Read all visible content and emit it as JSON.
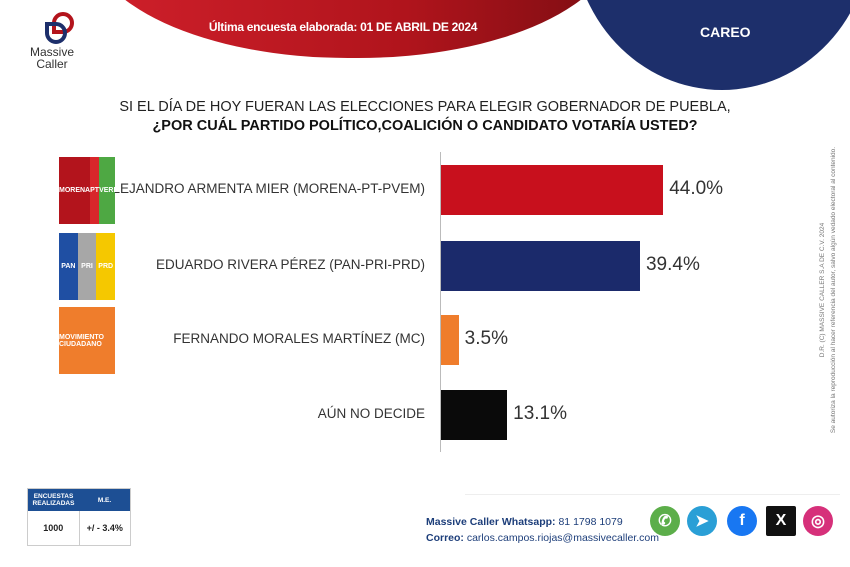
{
  "header": {
    "date_text": "Última encuesta elaborada: 01 DE ABRIL DE 2024",
    "section": "CAREO",
    "brand_line1": "Massive",
    "brand_line2": "Caller"
  },
  "question": {
    "line1": "SI EL DÍA DE HOY FUERAN LAS ELECCIONES PARA ELEGIR GOBERNADOR DE PUEBLA,",
    "line2": "¿POR CUÁL PARTIDO POLÍTICO,COALICIÓN  O CANDIDATO VOTARÍA USTED?"
  },
  "chart_data": {
    "type": "bar",
    "orientation": "horizontal",
    "categories": [
      "ALEJANDRO ARMENTA MIER (MORENA-PT-PVEM)",
      "EDUARDO RIVERA PÉREZ (PAN-PRI-PRD)",
      "FERNANDO MORALES MARTÍNEZ (MC)",
      "AÚN NO DECIDE"
    ],
    "values": [
      44.0,
      39.4,
      3.5,
      13.1
    ],
    "labels": [
      "44.0%",
      "39.4%",
      "3.5%",
      "13.1%"
    ],
    "colors": [
      "#c8101d",
      "#1b2a6b",
      "#ef7d2c",
      "#0a0a0a"
    ],
    "xlim": [
      0,
      100
    ],
    "grid": false,
    "legend": "none"
  },
  "party_logos": [
    {
      "parts": [
        "MORENA",
        "PT",
        "VERDE"
      ],
      "colors": [
        "#b3141c",
        "#d8262b",
        "#4ea843"
      ]
    },
    {
      "parts": [
        "PAN",
        "PRI",
        "PRD"
      ],
      "colors": [
        "#1f4fa3",
        "#a7a7a7",
        "#f5c800"
      ]
    },
    {
      "parts": [
        "MOVIMIENTO CIUDADANO"
      ],
      "colors": [
        "#ef7d2c"
      ]
    }
  ],
  "side_note": {
    "line1": "D.R. (C) MASSIVE CALLER S.A DE C.V. 2024",
    "line2": "Se autoriza la reproducción al hacer referencia del autor, salvo algún vedado electoral al contenido."
  },
  "survey_table": {
    "col1": "ENCUESTAS REALIZADAS",
    "col2": "M.E.",
    "val1": "1000",
    "val2": "+/ - 3.4%"
  },
  "contact": {
    "whatsapp_label": "Massive Caller Whatsapp:",
    "whatsapp": "81 1798 1079",
    "email_label": "Correo:",
    "email": "carlos.campos.riojas@massivecaller.com"
  },
  "social": [
    {
      "name": "whatsapp-icon",
      "color": "#5cae4a",
      "glyph": "✆"
    },
    {
      "name": "telegram-icon",
      "color": "#2a9fd6",
      "glyph": "➤"
    },
    {
      "name": "facebook-icon",
      "color": "#1877f2",
      "glyph": "f"
    },
    {
      "name": "x-icon",
      "color": "#111111",
      "glyph": "X"
    },
    {
      "name": "instagram-icon",
      "color": "#d6307a",
      "glyph": "◎"
    }
  ]
}
